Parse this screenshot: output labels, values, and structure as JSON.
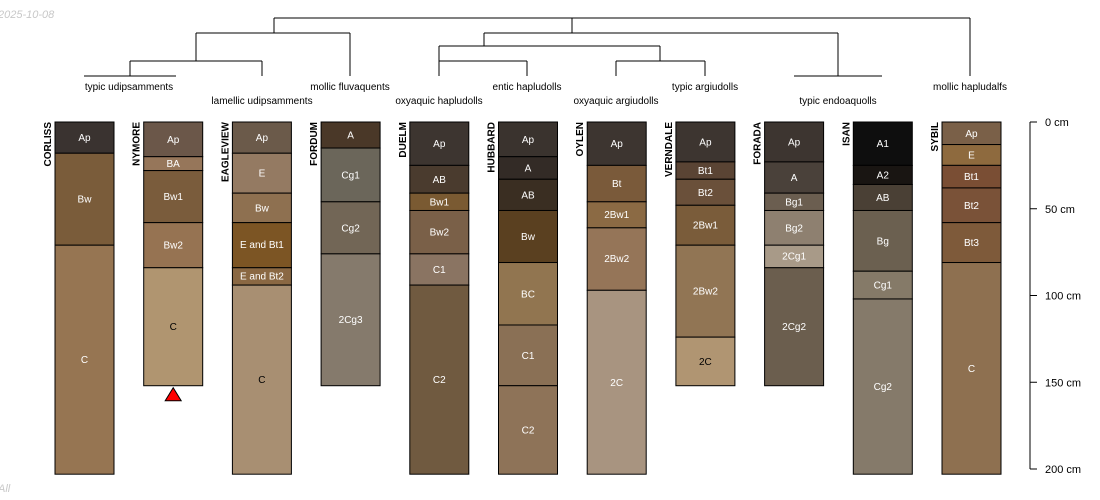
{
  "date_stamp": "2025-10-08",
  "corner_mark": "All",
  "depth_axis": {
    "unit": "cm",
    "max": 200,
    "ticks": [
      {
        "value": 0,
        "label": "0 cm"
      },
      {
        "value": 50,
        "label": "50 cm"
      },
      {
        "value": 100,
        "label": "100 cm"
      },
      {
        "value": 150,
        "label": "150 cm"
      },
      {
        "value": 200,
        "label": "200 cm"
      }
    ]
  },
  "taxonomy_labels": [
    "typic udipsamments",
    "lamellic udipsamments",
    "mollic fluvaquents",
    "oxyaquic hapludolls",
    "entic hapludolls",
    "oxyaquic argiudolls",
    "typic argiudolls",
    "typic endoaquolls",
    "mollic hapludalfs"
  ],
  "profiles": [
    {
      "name": "CORLISS",
      "horizons": [
        {
          "name": "Ap",
          "top": 0,
          "bottom": 18,
          "color": "#3a3330",
          "text_color": "#ffffff"
        },
        {
          "name": "Bw",
          "top": 18,
          "bottom": 71,
          "color": "#7a5c3a",
          "text_color": "#ffffff"
        },
        {
          "name": "C",
          "top": 71,
          "bottom": 203,
          "color": "#967552",
          "text_color": "#ffffff"
        }
      ]
    },
    {
      "name": "NYMORE",
      "marker": "bottom",
      "horizons": [
        {
          "name": "Ap",
          "top": 0,
          "bottom": 20,
          "color": "#6b5749",
          "text_color": "#ffffff"
        },
        {
          "name": "BA",
          "top": 20,
          "bottom": 28,
          "color": "#96765a",
          "text_color": "#ffffff"
        },
        {
          "name": "Bw1",
          "top": 28,
          "bottom": 58,
          "color": "#7a5c3c",
          "text_color": "#ffffff"
        },
        {
          "name": "Bw2",
          "top": 58,
          "bottom": 84,
          "color": "#967352",
          "text_color": "#ffffff"
        },
        {
          "name": "C",
          "top": 84,
          "bottom": 152,
          "color": "#b09570",
          "text_color": "#000000"
        }
      ]
    },
    {
      "name": "EAGLEVIEW",
      "horizons": [
        {
          "name": "Ap",
          "top": 0,
          "bottom": 18,
          "color": "#6b5a4a",
          "text_color": "#ffffff"
        },
        {
          "name": "E",
          "top": 18,
          "bottom": 41,
          "color": "#947a62",
          "text_color": "#ffffff"
        },
        {
          "name": "Bw",
          "top": 41,
          "bottom": 58,
          "color": "#8e7050",
          "text_color": "#ffffff"
        },
        {
          "name": "E and Bt1",
          "top": 58,
          "bottom": 84,
          "color": "#7c5524",
          "text_color": "#ffffff"
        },
        {
          "name": "E and Bt2",
          "top": 84,
          "bottom": 94,
          "color": "#8a6843",
          "text_color": "#ffffff"
        },
        {
          "name": "C",
          "top": 94,
          "bottom": 203,
          "color": "#a88f72",
          "text_color": "#000000"
        }
      ]
    },
    {
      "name": "FORDUM",
      "horizons": [
        {
          "name": "A",
          "top": 0,
          "bottom": 15,
          "color": "#4a3828",
          "text_color": "#ffffff"
        },
        {
          "name": "Cg1",
          "top": 15,
          "bottom": 46,
          "color": "#6b665a",
          "text_color": "#ffffff"
        },
        {
          "name": "Cg2",
          "top": 46,
          "bottom": 76,
          "color": "#726656",
          "text_color": "#ffffff"
        },
        {
          "name": "2Cg3",
          "top": 76,
          "bottom": 152,
          "color": "#857a6c",
          "text_color": "#ffffff"
        }
      ]
    },
    {
      "name": "DUELM",
      "horizons": [
        {
          "name": "Ap",
          "top": 0,
          "bottom": 25,
          "color": "#3d3530",
          "text_color": "#ffffff"
        },
        {
          "name": "AB",
          "top": 25,
          "bottom": 41,
          "color": "#4a3b2e",
          "text_color": "#ffffff"
        },
        {
          "name": "Bw1",
          "top": 41,
          "bottom": 51,
          "color": "#7a5a32",
          "text_color": "#ffffff"
        },
        {
          "name": "Bw2",
          "top": 51,
          "bottom": 76,
          "color": "#7a6048",
          "text_color": "#ffffff"
        },
        {
          "name": "C1",
          "top": 76,
          "bottom": 94,
          "color": "#8a7462",
          "text_color": "#ffffff"
        },
        {
          "name": "C2",
          "top": 94,
          "bottom": 203,
          "color": "#705a40",
          "text_color": "#ffffff"
        }
      ]
    },
    {
      "name": "HUBBARD",
      "horizons": [
        {
          "name": "Ap",
          "top": 0,
          "bottom": 20,
          "color": "#3a332e",
          "text_color": "#ffffff"
        },
        {
          "name": "A",
          "top": 20,
          "bottom": 33,
          "color": "#332b26",
          "text_color": "#ffffff"
        },
        {
          "name": "AB",
          "top": 33,
          "bottom": 51,
          "color": "#3a2e22",
          "text_color": "#ffffff"
        },
        {
          "name": "Bw",
          "top": 51,
          "bottom": 81,
          "color": "#5a4020",
          "text_color": "#ffffff"
        },
        {
          "name": "BC",
          "top": 81,
          "bottom": 117,
          "color": "#917550",
          "text_color": "#ffffff"
        },
        {
          "name": "C1",
          "top": 117,
          "bottom": 152,
          "color": "#8a7055",
          "text_color": "#ffffff"
        },
        {
          "name": "C2",
          "top": 152,
          "bottom": 203,
          "color": "#8e7358",
          "text_color": "#ffffff"
        }
      ]
    },
    {
      "name": "OYLEN",
      "horizons": [
        {
          "name": "Ap",
          "top": 0,
          "bottom": 25,
          "color": "#3d3530",
          "text_color": "#ffffff"
        },
        {
          "name": "Bt",
          "top": 25,
          "bottom": 46,
          "color": "#7a5a3a",
          "text_color": "#ffffff"
        },
        {
          "name": "2Bw1",
          "top": 46,
          "bottom": 61,
          "color": "#8b6a44",
          "text_color": "#ffffff"
        },
        {
          "name": "2Bw2",
          "top": 61,
          "bottom": 97,
          "color": "#957558",
          "text_color": "#ffffff"
        },
        {
          "name": "2C",
          "top": 97,
          "bottom": 203,
          "color": "#a89480",
          "text_color": "#ffffff"
        }
      ]
    },
    {
      "name": "VERNDALE",
      "horizons": [
        {
          "name": "Ap",
          "top": 0,
          "bottom": 23,
          "color": "#3d3530",
          "text_color": "#ffffff"
        },
        {
          "name": "Bt1",
          "top": 23,
          "bottom": 33,
          "color": "#5a4434",
          "text_color": "#ffffff"
        },
        {
          "name": "Bt2",
          "top": 33,
          "bottom": 48,
          "color": "#6a503a",
          "text_color": "#ffffff"
        },
        {
          "name": "2Bw1",
          "top": 48,
          "bottom": 71,
          "color": "#7a5c3a",
          "text_color": "#ffffff"
        },
        {
          "name": "2Bw2",
          "top": 71,
          "bottom": 124,
          "color": "#917554",
          "text_color": "#ffffff"
        },
        {
          "name": "2C",
          "top": 124,
          "bottom": 152,
          "color": "#b09572",
          "text_color": "#000000"
        }
      ]
    },
    {
      "name": "FORADA",
      "horizons": [
        {
          "name": "Ap",
          "top": 0,
          "bottom": 23,
          "color": "#3d3530",
          "text_color": "#ffffff"
        },
        {
          "name": "A",
          "top": 23,
          "bottom": 41,
          "color": "#4a413a",
          "text_color": "#ffffff"
        },
        {
          "name": "Bg1",
          "top": 41,
          "bottom": 51,
          "color": "#6b5e50",
          "text_color": "#ffffff"
        },
        {
          "name": "Bg2",
          "top": 51,
          "bottom": 71,
          "color": "#8e8070",
          "text_color": "#ffffff"
        },
        {
          "name": "2Cg1",
          "top": 71,
          "bottom": 84,
          "color": "#a89a88",
          "text_color": "#ffffff"
        },
        {
          "name": "2Cg2",
          "top": 84,
          "bottom": 152,
          "color": "#6b5e4e",
          "text_color": "#ffffff"
        }
      ]
    },
    {
      "name": "ISAN",
      "horizons": [
        {
          "name": "A1",
          "top": 0,
          "bottom": 25,
          "color": "#0e0e0e",
          "text_color": "#ffffff"
        },
        {
          "name": "A2",
          "top": 25,
          "bottom": 36,
          "color": "#191512",
          "text_color": "#ffffff"
        },
        {
          "name": "AB",
          "top": 36,
          "bottom": 51,
          "color": "#4a4035",
          "text_color": "#ffffff"
        },
        {
          "name": "Bg",
          "top": 51,
          "bottom": 86,
          "color": "#6b6050",
          "text_color": "#ffffff"
        },
        {
          "name": "Cg1",
          "top": 86,
          "bottom": 102,
          "color": "#857a68",
          "text_color": "#ffffff"
        },
        {
          "name": "Cg2",
          "top": 102,
          "bottom": 203,
          "color": "#857a6a",
          "text_color": "#ffffff"
        }
      ]
    },
    {
      "name": "SYBIL",
      "horizons": [
        {
          "name": "Ap",
          "top": 0,
          "bottom": 13,
          "color": "#7a6048",
          "text_color": "#ffffff"
        },
        {
          "name": "E",
          "top": 13,
          "bottom": 25,
          "color": "#8e6a3e",
          "text_color": "#ffffff"
        },
        {
          "name": "Bt1",
          "top": 25,
          "bottom": 38,
          "color": "#7a4e34",
          "text_color": "#ffffff"
        },
        {
          "name": "Bt2",
          "top": 38,
          "bottom": 58,
          "color": "#7a5238",
          "text_color": "#ffffff"
        },
        {
          "name": "Bt3",
          "top": 58,
          "bottom": 81,
          "color": "#7e5a3a",
          "text_color": "#ffffff"
        },
        {
          "name": "C",
          "top": 81,
          "bottom": 203,
          "color": "#8e7050",
          "text_color": "#ffffff"
        }
      ]
    }
  ]
}
